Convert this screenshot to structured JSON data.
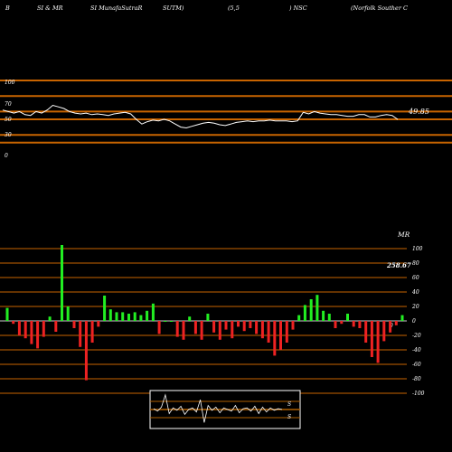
{
  "header": {
    "items": [
      "B",
      "SI & MR",
      "SI MunafaSutraR",
      "SUTM)",
      "(5,5",
      ") NSC",
      "(Norfolk Souther C"
    ]
  },
  "colors": {
    "background": "#000000",
    "orange": "#c86400",
    "line": "#ffffff",
    "positive": "#22ee22",
    "negative": "#ee2222",
    "mini_line": "#b06000"
  },
  "chart_data": [
    {
      "type": "line",
      "name": "RSI",
      "yticks": [
        "100",
        "70",
        "50",
        "30",
        "0"
      ],
      "ylim": [
        0,
        100
      ],
      "reference_lines": [
        100,
        80,
        60,
        50,
        30,
        20
      ],
      "last_value_label": "49.85",
      "values": [
        62,
        60,
        58,
        60,
        56,
        55,
        60,
        58,
        62,
        68,
        66,
        64,
        60,
        58,
        57,
        58,
        56,
        57,
        56,
        55,
        57,
        58,
        59,
        57,
        50,
        44,
        47,
        49,
        48,
        50,
        48,
        44,
        40,
        39,
        41,
        43,
        45,
        46,
        45,
        43,
        42,
        44,
        46,
        47,
        48,
        47,
        48,
        48,
        49,
        48,
        48,
        48,
        47,
        48,
        59,
        57,
        60,
        58,
        57,
        56,
        56,
        55,
        54,
        54,
        56,
        56,
        53,
        53,
        55,
        56,
        55,
        49.85
      ]
    },
    {
      "type": "bar",
      "name": "MRSI",
      "title": "MR",
      "yticks": [
        "100",
        "80",
        "60",
        "40",
        "20",
        "0",
        "-20",
        "-40",
        "-60",
        "-80",
        "-100"
      ],
      "ylim": [
        -100,
        100
      ],
      "last_value_label": "258.67",
      "zero_label": "0",
      "values": [
        18,
        -4,
        -20,
        -24,
        -32,
        -38,
        -22,
        6,
        -15,
        105,
        20,
        -10,
        -36,
        -82,
        -30,
        -8,
        35,
        16,
        12,
        12,
        10,
        12,
        8,
        14,
        24,
        -18,
        0,
        0,
        -22,
        -26,
        6,
        -18,
        -26,
        10,
        -16,
        -26,
        -12,
        -24,
        -8,
        -14,
        -10,
        -18,
        -24,
        -30,
        -48,
        -40,
        -30,
        -12,
        8,
        22,
        30,
        36,
        14,
        10,
        -10,
        -4,
        10,
        -8,
        -10,
        -30,
        -50,
        -58,
        -28,
        -16,
        -6,
        8
      ]
    },
    {
      "type": "line",
      "name": "mini",
      "label_top": "S",
      "label_bottom": "S",
      "values": [
        0.1,
        -0.2,
        0.3,
        1.8,
        -0.5,
        0.2,
        -0.1,
        0.4,
        -0.6,
        0.0,
        0.2,
        -0.3,
        1.2,
        -1.6,
        0.5,
        -0.1,
        0.3,
        -0.4,
        0.2,
        0.0,
        -0.2,
        0.5,
        -0.4,
        0.1,
        0.2,
        -0.2,
        0.4,
        -0.5,
        0.3,
        -0.3,
        0.2,
        -0.1,
        0.1,
        0.0
      ]
    }
  ]
}
